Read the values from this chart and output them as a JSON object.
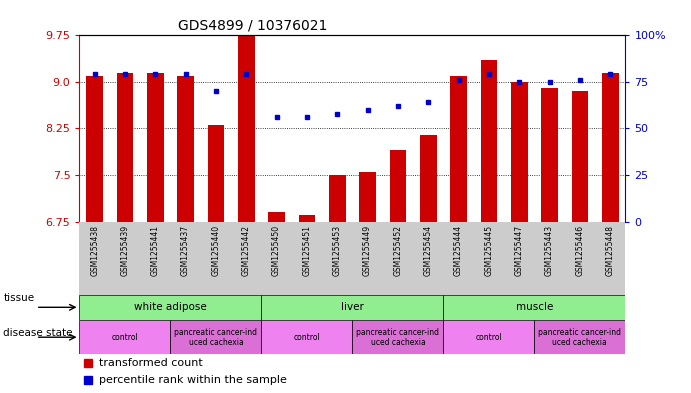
{
  "title": "GDS4899 / 10376021",
  "samples": [
    "GSM1255438",
    "GSM1255439",
    "GSM1255441",
    "GSM1255437",
    "GSM1255440",
    "GSM1255442",
    "GSM1255450",
    "GSM1255451",
    "GSM1255453",
    "GSM1255449",
    "GSM1255452",
    "GSM1255454",
    "GSM1255444",
    "GSM1255445",
    "GSM1255447",
    "GSM1255443",
    "GSM1255446",
    "GSM1255448"
  ],
  "red_values": [
    9.1,
    9.15,
    9.15,
    9.1,
    8.3,
    9.75,
    6.9,
    6.85,
    7.5,
    7.55,
    7.9,
    8.15,
    9.1,
    9.35,
    9.0,
    8.9,
    8.85,
    9.15
  ],
  "blue_values": [
    79,
    79,
    79,
    79,
    70,
    79,
    56,
    56,
    58,
    60,
    62,
    64,
    76,
    79,
    75,
    75,
    76,
    79
  ],
  "tissue_groups": [
    {
      "label": "white adipose",
      "start": 0,
      "end": 5,
      "color": "#90EE90"
    },
    {
      "label": "liver",
      "start": 6,
      "end": 11,
      "color": "#90EE90"
    },
    {
      "label": "muscle",
      "start": 12,
      "end": 17,
      "color": "#90EE90"
    }
  ],
  "disease_groups": [
    {
      "label": "control",
      "start": 0,
      "end": 2,
      "color": "#EE82EE"
    },
    {
      "label": "pancreatic cancer-ind\nuced cachexia",
      "start": 3,
      "end": 5,
      "color": "#DA70D6"
    },
    {
      "label": "control",
      "start": 6,
      "end": 8,
      "color": "#EE82EE"
    },
    {
      "label": "pancreatic cancer-ind\nuced cachexia",
      "start": 9,
      "end": 11,
      "color": "#DA70D6"
    },
    {
      "label": "control",
      "start": 12,
      "end": 14,
      "color": "#EE82EE"
    },
    {
      "label": "pancreatic cancer-ind\nuced cachexia",
      "start": 15,
      "end": 17,
      "color": "#DA70D6"
    }
  ],
  "ylim_left": [
    6.75,
    9.75
  ],
  "yticks_left": [
    6.75,
    7.5,
    8.25,
    9.0,
    9.75
  ],
  "ylim_right": [
    0,
    100
  ],
  "yticks_right": [
    0,
    25,
    50,
    75,
    100
  ],
  "bar_color": "#CC0000",
  "dot_color": "#0000CC",
  "background_color": "#ffffff",
  "left_label_color": "#CC0000",
  "right_label_color": "#0000CC",
  "xticklabel_bg": "#CCCCCC"
}
